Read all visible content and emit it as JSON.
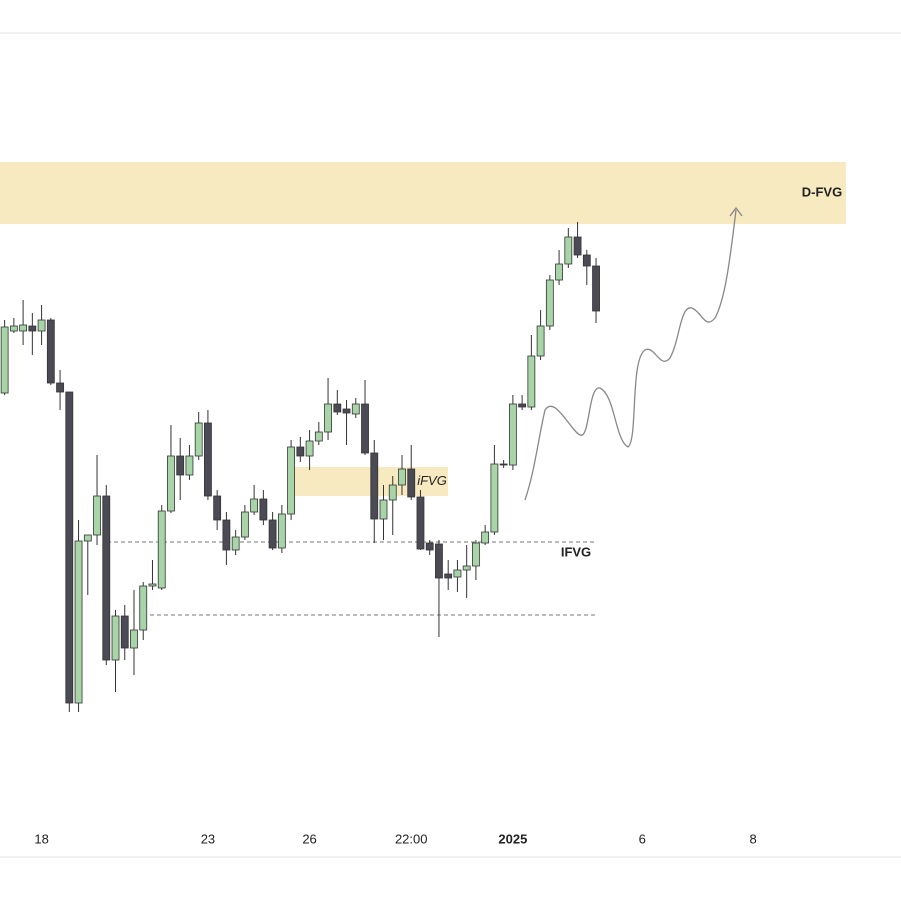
{
  "chart_data": {
    "type": "candlestick",
    "x": [
      0,
      1,
      2,
      3,
      4,
      5,
      6,
      7,
      8,
      9,
      10,
      11,
      12,
      13,
      14,
      15,
      16,
      17,
      18,
      19,
      20,
      21,
      22,
      23,
      24,
      25,
      26,
      27,
      28,
      29,
      30,
      31,
      32,
      33,
      34,
      35,
      36,
      37,
      38,
      39,
      40,
      41,
      42,
      43,
      44,
      45,
      46,
      47,
      48,
      49,
      50,
      51,
      52,
      53,
      54,
      55,
      56,
      57,
      58,
      59,
      60,
      61,
      62,
      63,
      64
    ],
    "open": [
      507,
      569,
      569,
      574,
      569,
      580,
      517,
      508,
      197,
      359,
      365,
      404,
      240,
      284,
      252,
      270,
      314,
      312,
      389,
      444,
      425,
      444,
      477,
      404,
      380,
      350,
      363,
      388,
      401,
      380,
      352,
      386,
      453,
      444,
      459,
      468,
      496,
      491,
      486,
      496,
      447,
      381,
      400,
      415,
      431,
      403,
      357,
      356,
      326,
      323,
      330,
      334,
      357,
      368,
      436,
      435,
      496,
      493,
      544,
      574,
      620,
      636,
      663,
      645,
      634
    ],
    "high": [
      580,
      582,
      600,
      587,
      595,
      582,
      530,
      508,
      380,
      365,
      445,
      415,
      290,
      295,
      310,
      318,
      340,
      395,
      475,
      462,
      455,
      488,
      490,
      410,
      388,
      370,
      395,
      415,
      410,
      388,
      395,
      460,
      463,
      470,
      478,
      522,
      510,
      500,
      502,
      520,
      460,
      415,
      424,
      445,
      455,
      410,
      360,
      360,
      340,
      340,
      355,
      360,
      375,
      455,
      440,
      505,
      505,
      565,
      590,
      625,
      650,
      672,
      678,
      650,
      642
    ],
    "low": [
      505,
      567,
      555,
      545,
      555,
      515,
      490,
      188,
      188,
      305,
      355,
      235,
      208,
      240,
      225,
      260,
      310,
      310,
      387,
      400,
      420,
      440,
      400,
      370,
      335,
      345,
      360,
      385,
      375,
      350,
      347,
      380,
      438,
      430,
      455,
      460,
      485,
      455,
      482,
      445,
      357,
      360,
      365,
      405,
      400,
      350,
      345,
      263,
      310,
      308,
      302,
      320,
      355,
      365,
      432,
      430,
      490,
      490,
      540,
      570,
      615,
      632,
      642,
      615,
      577
    ],
    "close": [
      573,
      574,
      575,
      569,
      580,
      517,
      508,
      197,
      359,
      365,
      404,
      240,
      284,
      252,
      270,
      314,
      316,
      389,
      444,
      425,
      444,
      477,
      404,
      380,
      350,
      363,
      388,
      401,
      380,
      352,
      386,
      453,
      444,
      459,
      468,
      496,
      488,
      487,
      496,
      447,
      381,
      400,
      415,
      431,
      403,
      351,
      350,
      322,
      322,
      330,
      334,
      357,
      368,
      436,
      435,
      496,
      493,
      544,
      574,
      620,
      636,
      663,
      645,
      634,
      589
    ],
    "up_color": "#a8d5a8",
    "down_color": "#4b4b55",
    "xlim": [
      -0.5,
      97
    ],
    "ylim": [
      0,
      900
    ],
    "xticks": [
      {
        "value": 4,
        "label": "18"
      },
      {
        "value": 22,
        "label": "23"
      },
      {
        "value": 33,
        "label": "26"
      },
      {
        "value": 44,
        "label": "22:00"
      },
      {
        "value": 55,
        "label": "2025"
      },
      {
        "value": 69,
        "label": "6"
      },
      {
        "value": 81,
        "label": "8"
      }
    ],
    "zones": [
      {
        "label": "D-FVG",
        "range": [
          676,
          738
        ]
      },
      {
        "label": "iFVG",
        "range": [
          404,
          433
        ]
      }
    ],
    "levels": [
      {
        "label": "IFVG",
        "value": 358
      },
      {
        "value": 285
      }
    ]
  }
}
